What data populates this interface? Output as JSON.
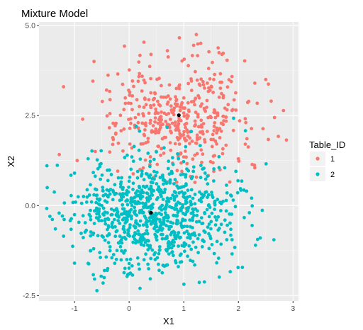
{
  "chart_data": {
    "type": "scatter",
    "title": "Mixture Model",
    "xlabel": "X1",
    "ylabel": "X2",
    "xlim": [
      -1.65,
      3.1
    ],
    "ylim": [
      -2.65,
      5.1
    ],
    "x_ticks": [
      -1,
      0,
      1,
      2,
      3
    ],
    "x_tick_labels": [
      "-1",
      "0",
      "1",
      "2",
      "3"
    ],
    "y_ticks": [
      -2.5,
      0,
      2.5,
      5
    ],
    "y_tick_labels": [
      "-2.5",
      "0.0",
      "2.5",
      "5.0"
    ],
    "grid": true,
    "legend": {
      "title": "Table_ID",
      "placement": "right",
      "entries": [
        {
          "label": "1",
          "color": "#F8766D"
        },
        {
          "label": "2",
          "color": "#00BFC4"
        }
      ]
    },
    "series": [
      {
        "name": "1",
        "color": "#F8766D",
        "generator": {
          "count": 420,
          "center": [
            0.95,
            2.5
          ],
          "spread": [
            0.62,
            0.82
          ],
          "seed": 7
        },
        "points": [
          [
            -1.2,
            3.3
          ],
          [
            0.4,
            4.2
          ],
          [
            0.7,
            4.3
          ],
          [
            0.92,
            4.66
          ],
          [
            1.18,
            4.45
          ],
          [
            1.7,
            4.2
          ],
          [
            2.3,
            3.4
          ],
          [
            2.5,
            3.5
          ],
          [
            2.6,
            2.9
          ],
          [
            2.88,
            1.82
          ],
          [
            -0.85,
            2.4
          ],
          [
            -0.3,
            1.7
          ],
          [
            -0.62,
            1.5
          ],
          [
            -0.95,
            1.25
          ],
          [
            2.3,
            1.05
          ],
          [
            2.0,
            1.3
          ],
          [
            1.55,
            0.95
          ],
          [
            0.7,
            0.65
          ],
          [
            0.2,
            1.0
          ],
          [
            1.0,
            1.35
          ]
        ]
      },
      {
        "name": "2",
        "color": "#00BFC4",
        "generator": {
          "count": 880,
          "center": [
            0.42,
            -0.2
          ],
          "spread": [
            0.72,
            0.76
          ],
          "seed": 11
        },
        "points": [
          [
            -1.5,
            0.5
          ],
          [
            -1.45,
            -0.3
          ],
          [
            -1.35,
            -0.65
          ],
          [
            -1.2,
            -0.85
          ],
          [
            -1.0,
            -1.6
          ],
          [
            -0.65,
            -1.2
          ],
          [
            -0.4,
            -1.8
          ],
          [
            0.2,
            -2.3
          ],
          [
            0.55,
            -1.8
          ],
          [
            2.4,
            -0.9
          ],
          [
            2.65,
            -0.95
          ],
          [
            2.2,
            -0.2
          ],
          [
            2.15,
            0.4
          ],
          [
            1.75,
            1.05
          ],
          [
            -1.0,
            0.9
          ],
          [
            -0.75,
            1.3
          ],
          [
            0.05,
            1.35
          ],
          [
            1.2,
            -1.65
          ],
          [
            0.7,
            -1.65
          ],
          [
            1.6,
            -0.4
          ]
        ]
      }
    ],
    "centroids": [
      {
        "x": 0.91,
        "y": 2.51,
        "color": "#000000"
      },
      {
        "x": 0.4,
        "y": -0.2,
        "color": "#000000"
      }
    ]
  },
  "colors": {
    "panel_background": "#EBEBEB",
    "grid_major": "#FFFFFF",
    "grid_minor": "#F5F5F5",
    "legend_key_background": "#F2F2F2"
  }
}
